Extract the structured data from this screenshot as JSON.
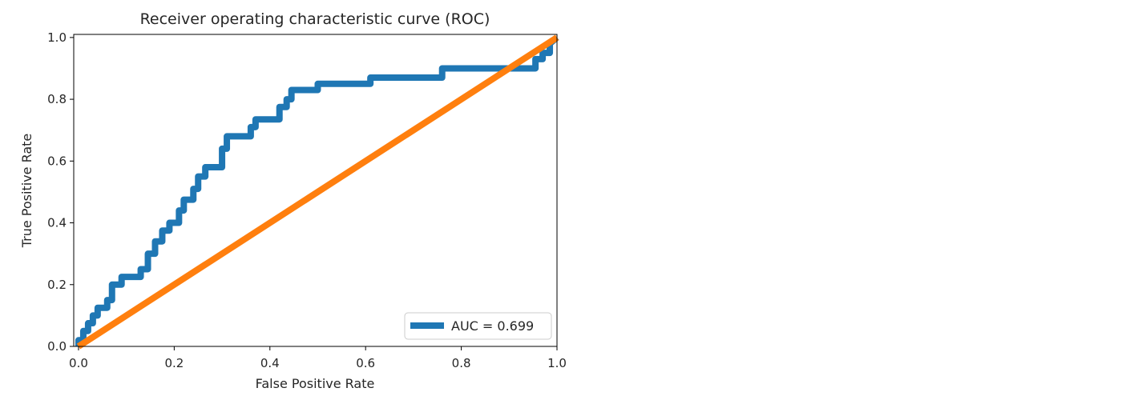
{
  "chart_data": {
    "type": "line",
    "title": "Receiver operating characteristic curve (ROC)",
    "xlabel": "False Positive Rate",
    "ylabel": "True Positive Rate",
    "xlim": [
      -0.01,
      1.0
    ],
    "ylim": [
      0.0,
      1.01
    ],
    "xticks": [
      0.0,
      0.2,
      0.4,
      0.6,
      0.8,
      1.0
    ],
    "xtick_labels": [
      "0.0",
      "0.2",
      "0.4",
      "0.6",
      "0.8",
      "1.0"
    ],
    "yticks": [
      0.0,
      0.2,
      0.4,
      0.6,
      0.8,
      1.0
    ],
    "ytick_labels": [
      "0.0",
      "0.2",
      "0.4",
      "0.6",
      "0.8",
      "1.0"
    ],
    "grid": false,
    "legend_position": "lower-right",
    "series": [
      {
        "name": "AUC = 0.699",
        "color": "#1f77b4",
        "x": [
          0.0,
          0.0,
          0.01,
          0.01,
          0.02,
          0.02,
          0.03,
          0.03,
          0.04,
          0.04,
          0.06,
          0.06,
          0.07,
          0.07,
          0.09,
          0.09,
          0.13,
          0.13,
          0.145,
          0.145,
          0.16,
          0.16,
          0.175,
          0.175,
          0.19,
          0.19,
          0.21,
          0.21,
          0.22,
          0.22,
          0.24,
          0.24,
          0.25,
          0.25,
          0.265,
          0.265,
          0.3,
          0.3,
          0.31,
          0.31,
          0.36,
          0.36,
          0.37,
          0.37,
          0.42,
          0.42,
          0.435,
          0.435,
          0.445,
          0.445,
          0.5,
          0.5,
          0.61,
          0.61,
          0.76,
          0.76,
          0.955,
          0.955,
          0.97,
          0.97,
          0.985,
          0.985,
          1.0
        ],
        "y": [
          0.0,
          0.02,
          0.02,
          0.05,
          0.05,
          0.075,
          0.075,
          0.1,
          0.1,
          0.125,
          0.125,
          0.15,
          0.15,
          0.2,
          0.2,
          0.225,
          0.225,
          0.25,
          0.25,
          0.3,
          0.3,
          0.34,
          0.34,
          0.375,
          0.375,
          0.4,
          0.4,
          0.44,
          0.44,
          0.475,
          0.475,
          0.51,
          0.51,
          0.55,
          0.55,
          0.58,
          0.58,
          0.64,
          0.64,
          0.68,
          0.68,
          0.71,
          0.71,
          0.735,
          0.735,
          0.775,
          0.775,
          0.8,
          0.8,
          0.83,
          0.83,
          0.85,
          0.85,
          0.87,
          0.87,
          0.9,
          0.9,
          0.93,
          0.93,
          0.95,
          0.95,
          0.98,
          1.0
        ]
      },
      {
        "name": "",
        "color": "#ff7f0e",
        "x": [
          0.0,
          1.0
        ],
        "y": [
          0.0,
          1.0
        ]
      }
    ]
  }
}
